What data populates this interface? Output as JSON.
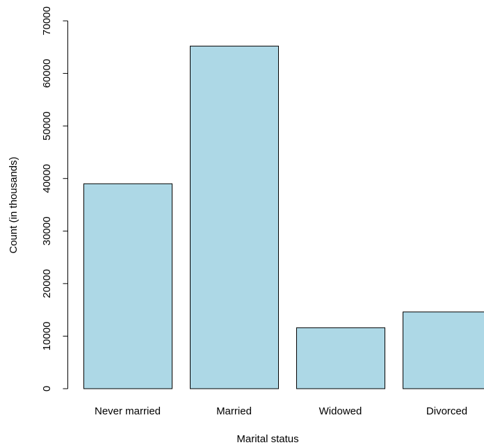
{
  "chart_data": {
    "type": "bar",
    "title": "",
    "xlabel": "Marital status",
    "ylabel": "Count (in thousands)",
    "categories": [
      "Never married",
      "Married",
      "Widowed",
      "Divorced"
    ],
    "values": [
      39000,
      65200,
      11600,
      14600
    ],
    "ylim": [
      0,
      70000
    ],
    "yticks": [
      0,
      10000,
      20000,
      30000,
      40000,
      50000,
      60000,
      70000
    ],
    "grid": false,
    "legend": "none",
    "bar_color": "#ADD8E6",
    "border_color": "#000000"
  }
}
